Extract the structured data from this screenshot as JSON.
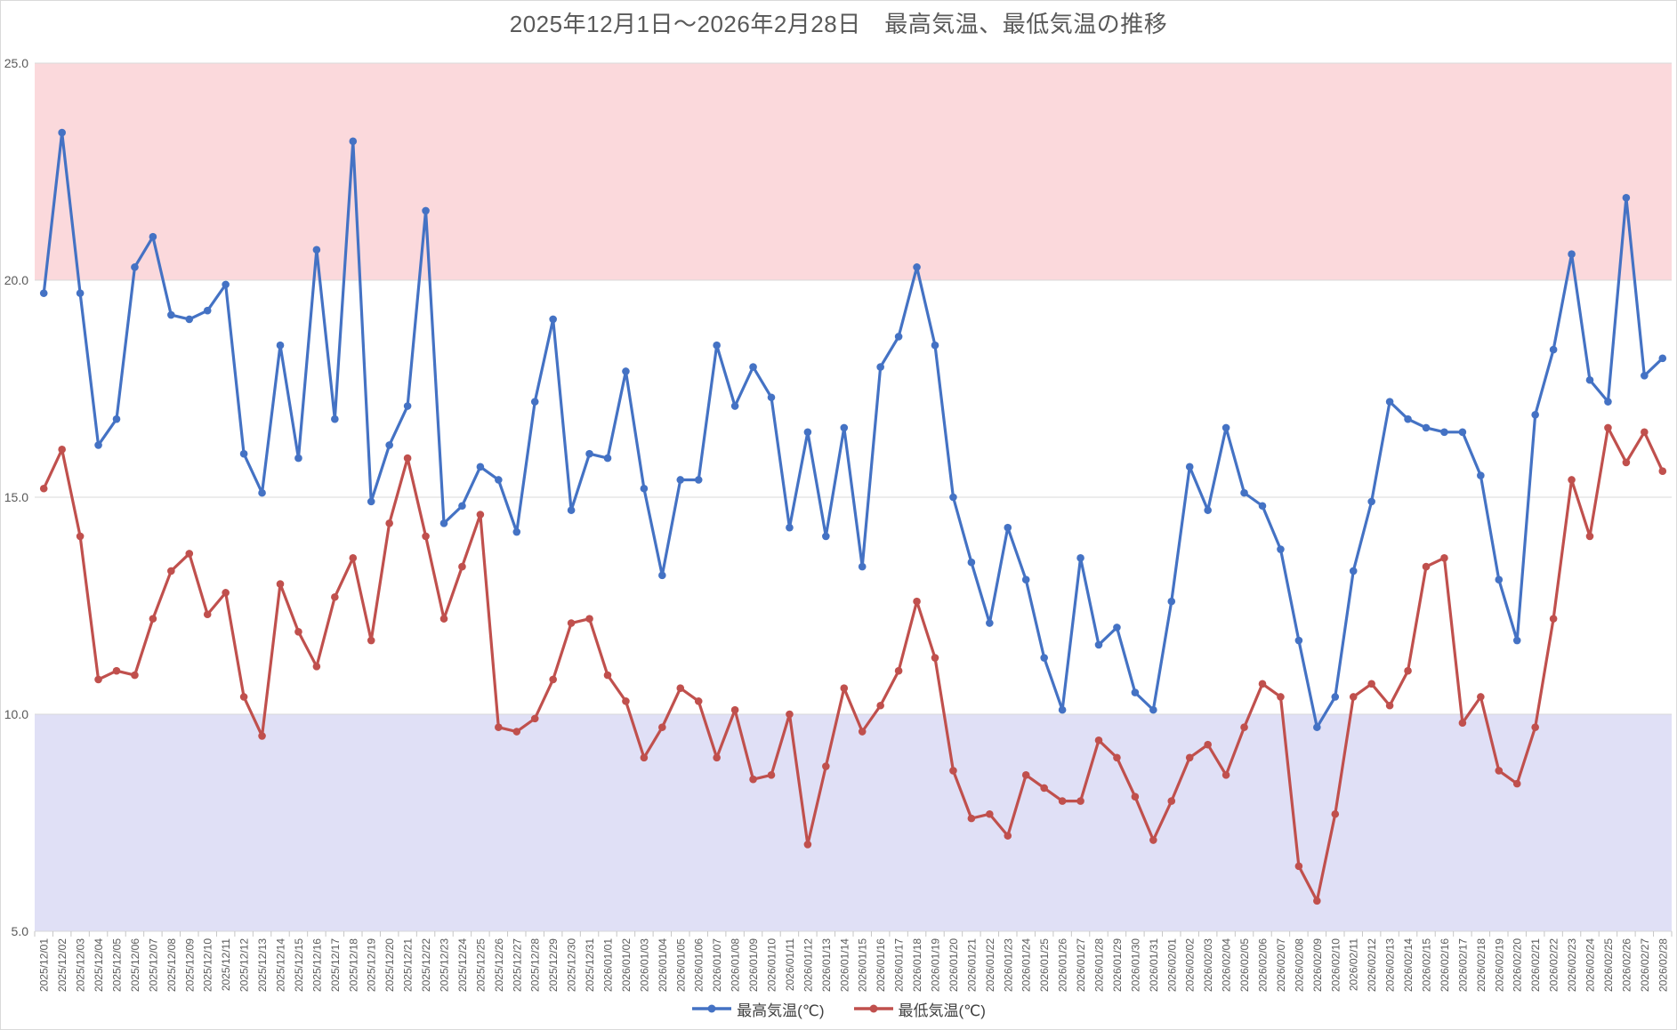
{
  "title": "2025年12月1日～2026年2月28日　最高気温、最低気温の推移",
  "legend": [
    {
      "label": "最高気温(℃)",
      "color": "#4472C4"
    },
    {
      "label": "最低気温(℃)",
      "color": "#C0504D"
    }
  ],
  "chart_data": {
    "type": "line",
    "title": "2025年12月1日～2026年2月28日　最高気温、最低気温の推移",
    "xlabel": "",
    "ylabel": "",
    "ylim": [
      5.0,
      25.0
    ],
    "grid": true,
    "gridline_color": "#D9D9D9",
    "tick_color": "#C6C6C6",
    "axis_text_color": "#595959",
    "legend_position": "bottom",
    "yticks": [
      {
        "v": 25,
        "label": "25.0"
      },
      {
        "v": 20,
        "label": "20.0"
      },
      {
        "v": 15,
        "label": "15.0"
      },
      {
        "v": 10,
        "label": "10.0"
      },
      {
        "v": 5,
        "label": "5.0"
      }
    ],
    "bands": [
      {
        "name": "above-20",
        "from": 20.0,
        "to": 25.0,
        "color": "#FBD9DC"
      },
      {
        "name": "below-10",
        "from": 5.0,
        "to": 10.0,
        "color": "#E0E0F6"
      }
    ],
    "x": [
      "2025/12/01",
      "2025/12/02",
      "2025/12/03",
      "2025/12/04",
      "2025/12/05",
      "2025/12/06",
      "2025/12/07",
      "2025/12/08",
      "2025/12/09",
      "2025/12/10",
      "2025/12/11",
      "2025/12/12",
      "2025/12/13",
      "2025/12/14",
      "2025/12/15",
      "2025/12/16",
      "2025/12/17",
      "2025/12/18",
      "2025/12/19",
      "2025/12/20",
      "2025/12/21",
      "2025/12/22",
      "2025/12/23",
      "2025/12/24",
      "2025/12/25",
      "2025/12/26",
      "2025/12/27",
      "2025/12/28",
      "2025/12/29",
      "2025/12/30",
      "2025/12/31",
      "2026/01/01",
      "2026/01/02",
      "2026/01/03",
      "2026/01/04",
      "2026/01/05",
      "2026/01/06",
      "2026/01/07",
      "2026/01/08",
      "2026/01/09",
      "2026/01/10",
      "2026/01/11",
      "2026/01/12",
      "2026/01/13",
      "2026/01/14",
      "2026/01/15",
      "2026/01/16",
      "2026/01/17",
      "2026/01/18",
      "2026/01/19",
      "2026/01/20",
      "2026/01/21",
      "2026/01/22",
      "2026/01/23",
      "2026/01/24",
      "2026/01/25",
      "2026/01/26",
      "2026/01/27",
      "2026/01/28",
      "2026/01/29",
      "2026/01/30",
      "2026/01/31",
      "2026/02/01",
      "2026/02/02",
      "2026/02/03",
      "2026/02/04",
      "2026/02/05",
      "2026/02/06",
      "2026/02/07",
      "2026/02/08",
      "2026/02/09",
      "2026/02/10",
      "2026/02/11",
      "2026/02/12",
      "2026/02/13",
      "2026/02/14",
      "2026/02/15",
      "2026/02/16",
      "2026/02/17",
      "2026/02/18",
      "2026/02/19",
      "2026/02/20",
      "2026/02/21",
      "2026/02/22",
      "2026/02/23",
      "2026/02/24",
      "2026/02/25",
      "2026/02/26",
      "2026/02/27",
      "2026/02/28"
    ],
    "series": [
      {
        "name": "最高気温(℃)",
        "color": "#4472C4",
        "values": [
          19.7,
          23.4,
          19.7,
          16.2,
          16.8,
          20.3,
          21.0,
          19.2,
          19.1,
          19.3,
          19.9,
          16.0,
          15.1,
          18.5,
          15.9,
          20.7,
          16.8,
          23.2,
          14.9,
          16.2,
          17.1,
          21.6,
          14.4,
          14.8,
          15.7,
          15.4,
          14.2,
          17.2,
          19.1,
          14.7,
          16.0,
          15.9,
          17.9,
          15.2,
          13.2,
          15.4,
          15.4,
          18.5,
          17.1,
          18.0,
          17.3,
          14.3,
          16.5,
          14.1,
          16.6,
          13.4,
          18.0,
          18.7,
          20.3,
          18.5,
          15.0,
          13.5,
          12.1,
          14.3,
          13.1,
          11.3,
          10.1,
          13.6,
          11.6,
          12.0,
          10.5,
          10.1,
          12.6,
          15.7,
          14.7,
          16.6,
          15.1,
          14.8,
          13.8,
          11.7,
          9.7,
          10.4,
          13.3,
          14.9,
          17.2,
          16.8,
          16.6,
          16.5,
          16.5,
          15.5,
          13.1,
          11.7,
          16.9,
          18.4,
          20.6,
          17.7,
          17.2,
          21.9,
          17.8,
          18.2
        ]
      },
      {
        "name": "最低気温(℃)",
        "color": "#C0504D",
        "values": [
          15.2,
          16.1,
          14.1,
          10.8,
          11.0,
          10.9,
          12.2,
          13.3,
          13.7,
          12.3,
          12.8,
          10.4,
          9.5,
          13.0,
          11.9,
          11.1,
          12.7,
          13.6,
          11.7,
          14.4,
          15.9,
          14.1,
          12.2,
          13.4,
          14.6,
          9.7,
          9.6,
          9.9,
          10.8,
          12.1,
          12.2,
          10.9,
          10.3,
          9.0,
          9.7,
          10.6,
          10.3,
          9.0,
          10.1,
          8.5,
          8.6,
          10.0,
          7.0,
          8.8,
          10.6,
          9.6,
          10.2,
          11.0,
          12.6,
          11.3,
          8.7,
          7.6,
          7.7,
          7.2,
          8.6,
          8.3,
          8.0,
          8.0,
          9.4,
          9.0,
          8.1,
          7.1,
          8.0,
          9.0,
          9.3,
          8.6,
          9.7,
          10.7,
          10.4,
          6.5,
          5.7,
          7.7,
          10.4,
          10.7,
          10.2,
          11.0,
          13.4,
          13.6,
          9.8,
          10.4,
          8.7,
          8.4,
          9.7,
          12.2,
          15.4,
          14.1,
          16.6,
          15.8,
          16.5,
          15.6
        ]
      }
    ]
  }
}
